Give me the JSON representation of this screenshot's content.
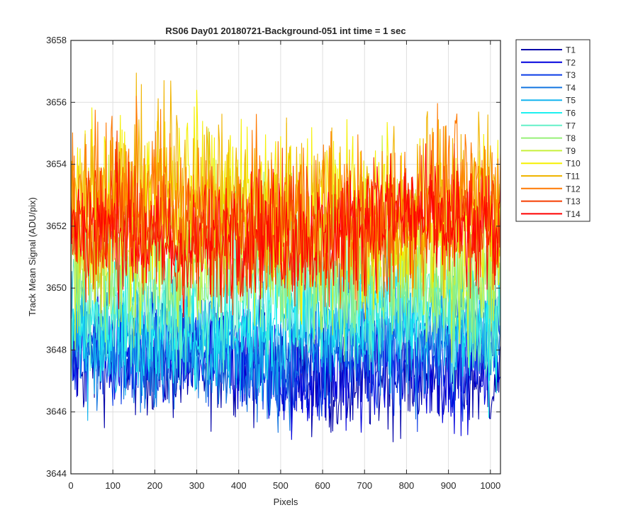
{
  "chart_data": {
    "type": "line",
    "title": "RS06 Day01 20180721-Background-051 int time = 1 sec",
    "xlabel": "Pixels",
    "ylabel": "Track Mean Signal (ADU/pix)",
    "xlim": [
      0,
      1024
    ],
    "ylim": [
      3644,
      3658
    ],
    "xticks": [
      0,
      100,
      200,
      300,
      400,
      500,
      600,
      700,
      800,
      900,
      1000
    ],
    "yticks": [
      3644,
      3646,
      3648,
      3650,
      3652,
      3654,
      3656,
      3658
    ],
    "grid": true,
    "legend_position": "outside-right-top",
    "series_profile": "noisy per-pixel signal; approximate mean and spread per track",
    "series": [
      {
        "name": "T1",
        "color": "#0000a8",
        "mean": 3647.4,
        "spread": 0.9
      },
      {
        "name": "T2",
        "color": "#0000dd",
        "mean": 3647.6,
        "spread": 0.9
      },
      {
        "name": "T3",
        "color": "#0a3be6",
        "mean": 3647.9,
        "spread": 0.95
      },
      {
        "name": "T4",
        "color": "#1476e0",
        "mean": 3648.2,
        "spread": 1.0
      },
      {
        "name": "T5",
        "color": "#14b4ef",
        "mean": 3648.6,
        "spread": 1.0
      },
      {
        "name": "T6",
        "color": "#1ef0f0",
        "mean": 3649.0,
        "spread": 1.0
      },
      {
        "name": "T7",
        "color": "#64f0c8",
        "mean": 3649.7,
        "spread": 1.1
      },
      {
        "name": "T8",
        "color": "#96f078",
        "mean": 3650.6,
        "spread": 1.2
      },
      {
        "name": "T9",
        "color": "#c8f03c",
        "mean": 3651.5,
        "spread": 1.3
      },
      {
        "name": "T10",
        "color": "#f5f000",
        "mean": 3652.6,
        "spread": 1.4
      },
      {
        "name": "T11",
        "color": "#f0b400",
        "mean": 3652.8,
        "spread": 1.4
      },
      {
        "name": "T12",
        "color": "#ff7800",
        "mean": 3652.5,
        "spread": 1.3
      },
      {
        "name": "T13",
        "color": "#f53c00",
        "mean": 3652.0,
        "spread": 1.1
      },
      {
        "name": "T14",
        "color": "#ff0000",
        "mean": 3651.8,
        "spread": 1.0
      }
    ]
  }
}
